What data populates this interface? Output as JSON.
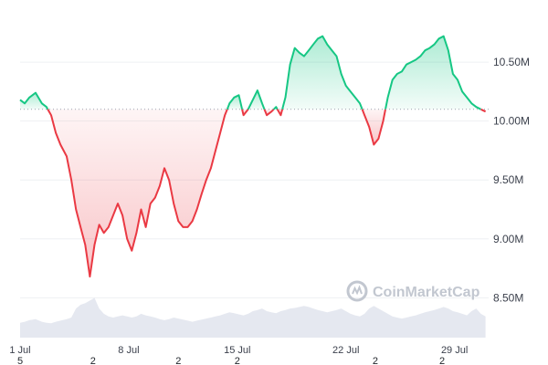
{
  "chart_data": {
    "type": "line",
    "baseline": 10.1,
    "ylim": [
      8.1,
      10.95
    ],
    "y_ticks": [
      {
        "value": 10.5,
        "label": "10.50M"
      },
      {
        "value": 10.0,
        "label": "10.00M"
      },
      {
        "value": 9.5,
        "label": "9.50M"
      },
      {
        "value": 9.0,
        "label": "9.00M"
      },
      {
        "value": 8.5,
        "label": "8.50M"
      }
    ],
    "x_ticks": [
      {
        "day": 1,
        "label": "1 Jul"
      },
      {
        "day": 8,
        "label": "8 Jul"
      },
      {
        "day": 15,
        "label": "15 Jul"
      },
      {
        "day": 22,
        "label": "22 Jul"
      },
      {
        "day": 29,
        "label": "29 Jul"
      }
    ],
    "x_sublabels": [
      {
        "day": 1,
        "label": "5"
      },
      {
        "day": 5.7,
        "label": "2"
      },
      {
        "day": 11.2,
        "label": "2"
      },
      {
        "day": 15,
        "label": "2"
      },
      {
        "day": 23.9,
        "label": "2"
      },
      {
        "day": 28.2,
        "label": "2"
      }
    ],
    "x": [
      1.0,
      1.3,
      1.6,
      2.0,
      2.4,
      2.7,
      3.0,
      3.3,
      3.6,
      4.0,
      4.3,
      4.6,
      4.9,
      5.2,
      5.5,
      5.8,
      6.1,
      6.4,
      6.7,
      7.0,
      7.3,
      7.6,
      7.9,
      8.2,
      8.5,
      8.8,
      9.1,
      9.4,
      9.7,
      10.0,
      10.3,
      10.6,
      10.9,
      11.2,
      11.5,
      11.8,
      12.1,
      12.4,
      12.7,
      13.0,
      13.3,
      13.6,
      13.9,
      14.2,
      14.5,
      14.8,
      15.1,
      15.4,
      15.7,
      16.0,
      16.3,
      16.6,
      16.9,
      17.2,
      17.5,
      17.8,
      18.1,
      18.4,
      18.7,
      19.0,
      19.3,
      19.6,
      19.9,
      20.2,
      20.5,
      20.8,
      21.1,
      21.4,
      21.7,
      22.0,
      22.3,
      22.6,
      22.9,
      23.2,
      23.5,
      23.8,
      24.1,
      24.4,
      24.7,
      25.0,
      25.3,
      25.6,
      25.9,
      26.2,
      26.5,
      26.8,
      27.1,
      27.4,
      27.7,
      28.0,
      28.3,
      28.6,
      28.9,
      29.2,
      29.5,
      29.8,
      30.1,
      30.4,
      30.7,
      31.0
    ],
    "y": [
      10.18,
      10.15,
      10.2,
      10.24,
      10.15,
      10.12,
      10.05,
      9.9,
      9.8,
      9.7,
      9.5,
      9.25,
      9.1,
      8.95,
      8.68,
      8.95,
      9.12,
      9.05,
      9.1,
      9.2,
      9.3,
      9.2,
      9.0,
      8.9,
      9.05,
      9.25,
      9.1,
      9.3,
      9.35,
      9.45,
      9.6,
      9.5,
      9.3,
      9.15,
      9.1,
      9.1,
      9.15,
      9.25,
      9.38,
      9.5,
      9.6,
      9.75,
      9.9,
      10.05,
      10.15,
      10.2,
      10.22,
      10.05,
      10.1,
      10.18,
      10.26,
      10.15,
      10.05,
      10.08,
      10.12,
      10.05,
      10.2,
      10.48,
      10.62,
      10.58,
      10.55,
      10.6,
      10.65,
      10.7,
      10.72,
      10.65,
      10.6,
      10.55,
      10.4,
      10.3,
      10.25,
      10.2,
      10.15,
      10.05,
      9.95,
      9.8,
      9.85,
      10.0,
      10.2,
      10.35,
      10.4,
      10.42,
      10.48,
      10.5,
      10.52,
      10.55,
      10.6,
      10.62,
      10.65,
      10.7,
      10.72,
      10.6,
      10.4,
      10.35,
      10.25,
      10.2,
      10.15,
      10.12,
      10.1,
      10.08
    ],
    "volume": [
      0.28,
      0.3,
      0.33,
      0.35,
      0.3,
      0.28,
      0.27,
      0.3,
      0.32,
      0.35,
      0.38,
      0.55,
      0.62,
      0.65,
      0.7,
      0.75,
      0.55,
      0.45,
      0.4,
      0.38,
      0.4,
      0.42,
      0.4,
      0.38,
      0.4,
      0.45,
      0.42,
      0.4,
      0.38,
      0.35,
      0.33,
      0.35,
      0.38,
      0.36,
      0.34,
      0.32,
      0.3,
      0.32,
      0.34,
      0.36,
      0.38,
      0.4,
      0.42,
      0.45,
      0.48,
      0.46,
      0.44,
      0.42,
      0.45,
      0.5,
      0.52,
      0.55,
      0.5,
      0.48,
      0.46,
      0.5,
      0.52,
      0.55,
      0.56,
      0.58,
      0.6,
      0.58,
      0.55,
      0.52,
      0.5,
      0.48,
      0.5,
      0.52,
      0.55,
      0.5,
      0.45,
      0.42,
      0.4,
      0.45,
      0.55,
      0.6,
      0.55,
      0.5,
      0.45,
      0.4,
      0.38,
      0.36,
      0.38,
      0.4,
      0.42,
      0.45,
      0.48,
      0.5,
      0.52,
      0.55,
      0.58,
      0.55,
      0.5,
      0.48,
      0.45,
      0.42,
      0.5,
      0.55,
      0.45,
      0.4
    ],
    "watermark": "CoinMarketCap",
    "colors": {
      "up_line": "#16c784",
      "down_line": "#ea3943",
      "up_fill": "#16c784",
      "down_fill": "#ea3943",
      "grid": "#eef0f3",
      "volume": "#cfd6e4",
      "baseline": "#9aa1ad"
    }
  }
}
